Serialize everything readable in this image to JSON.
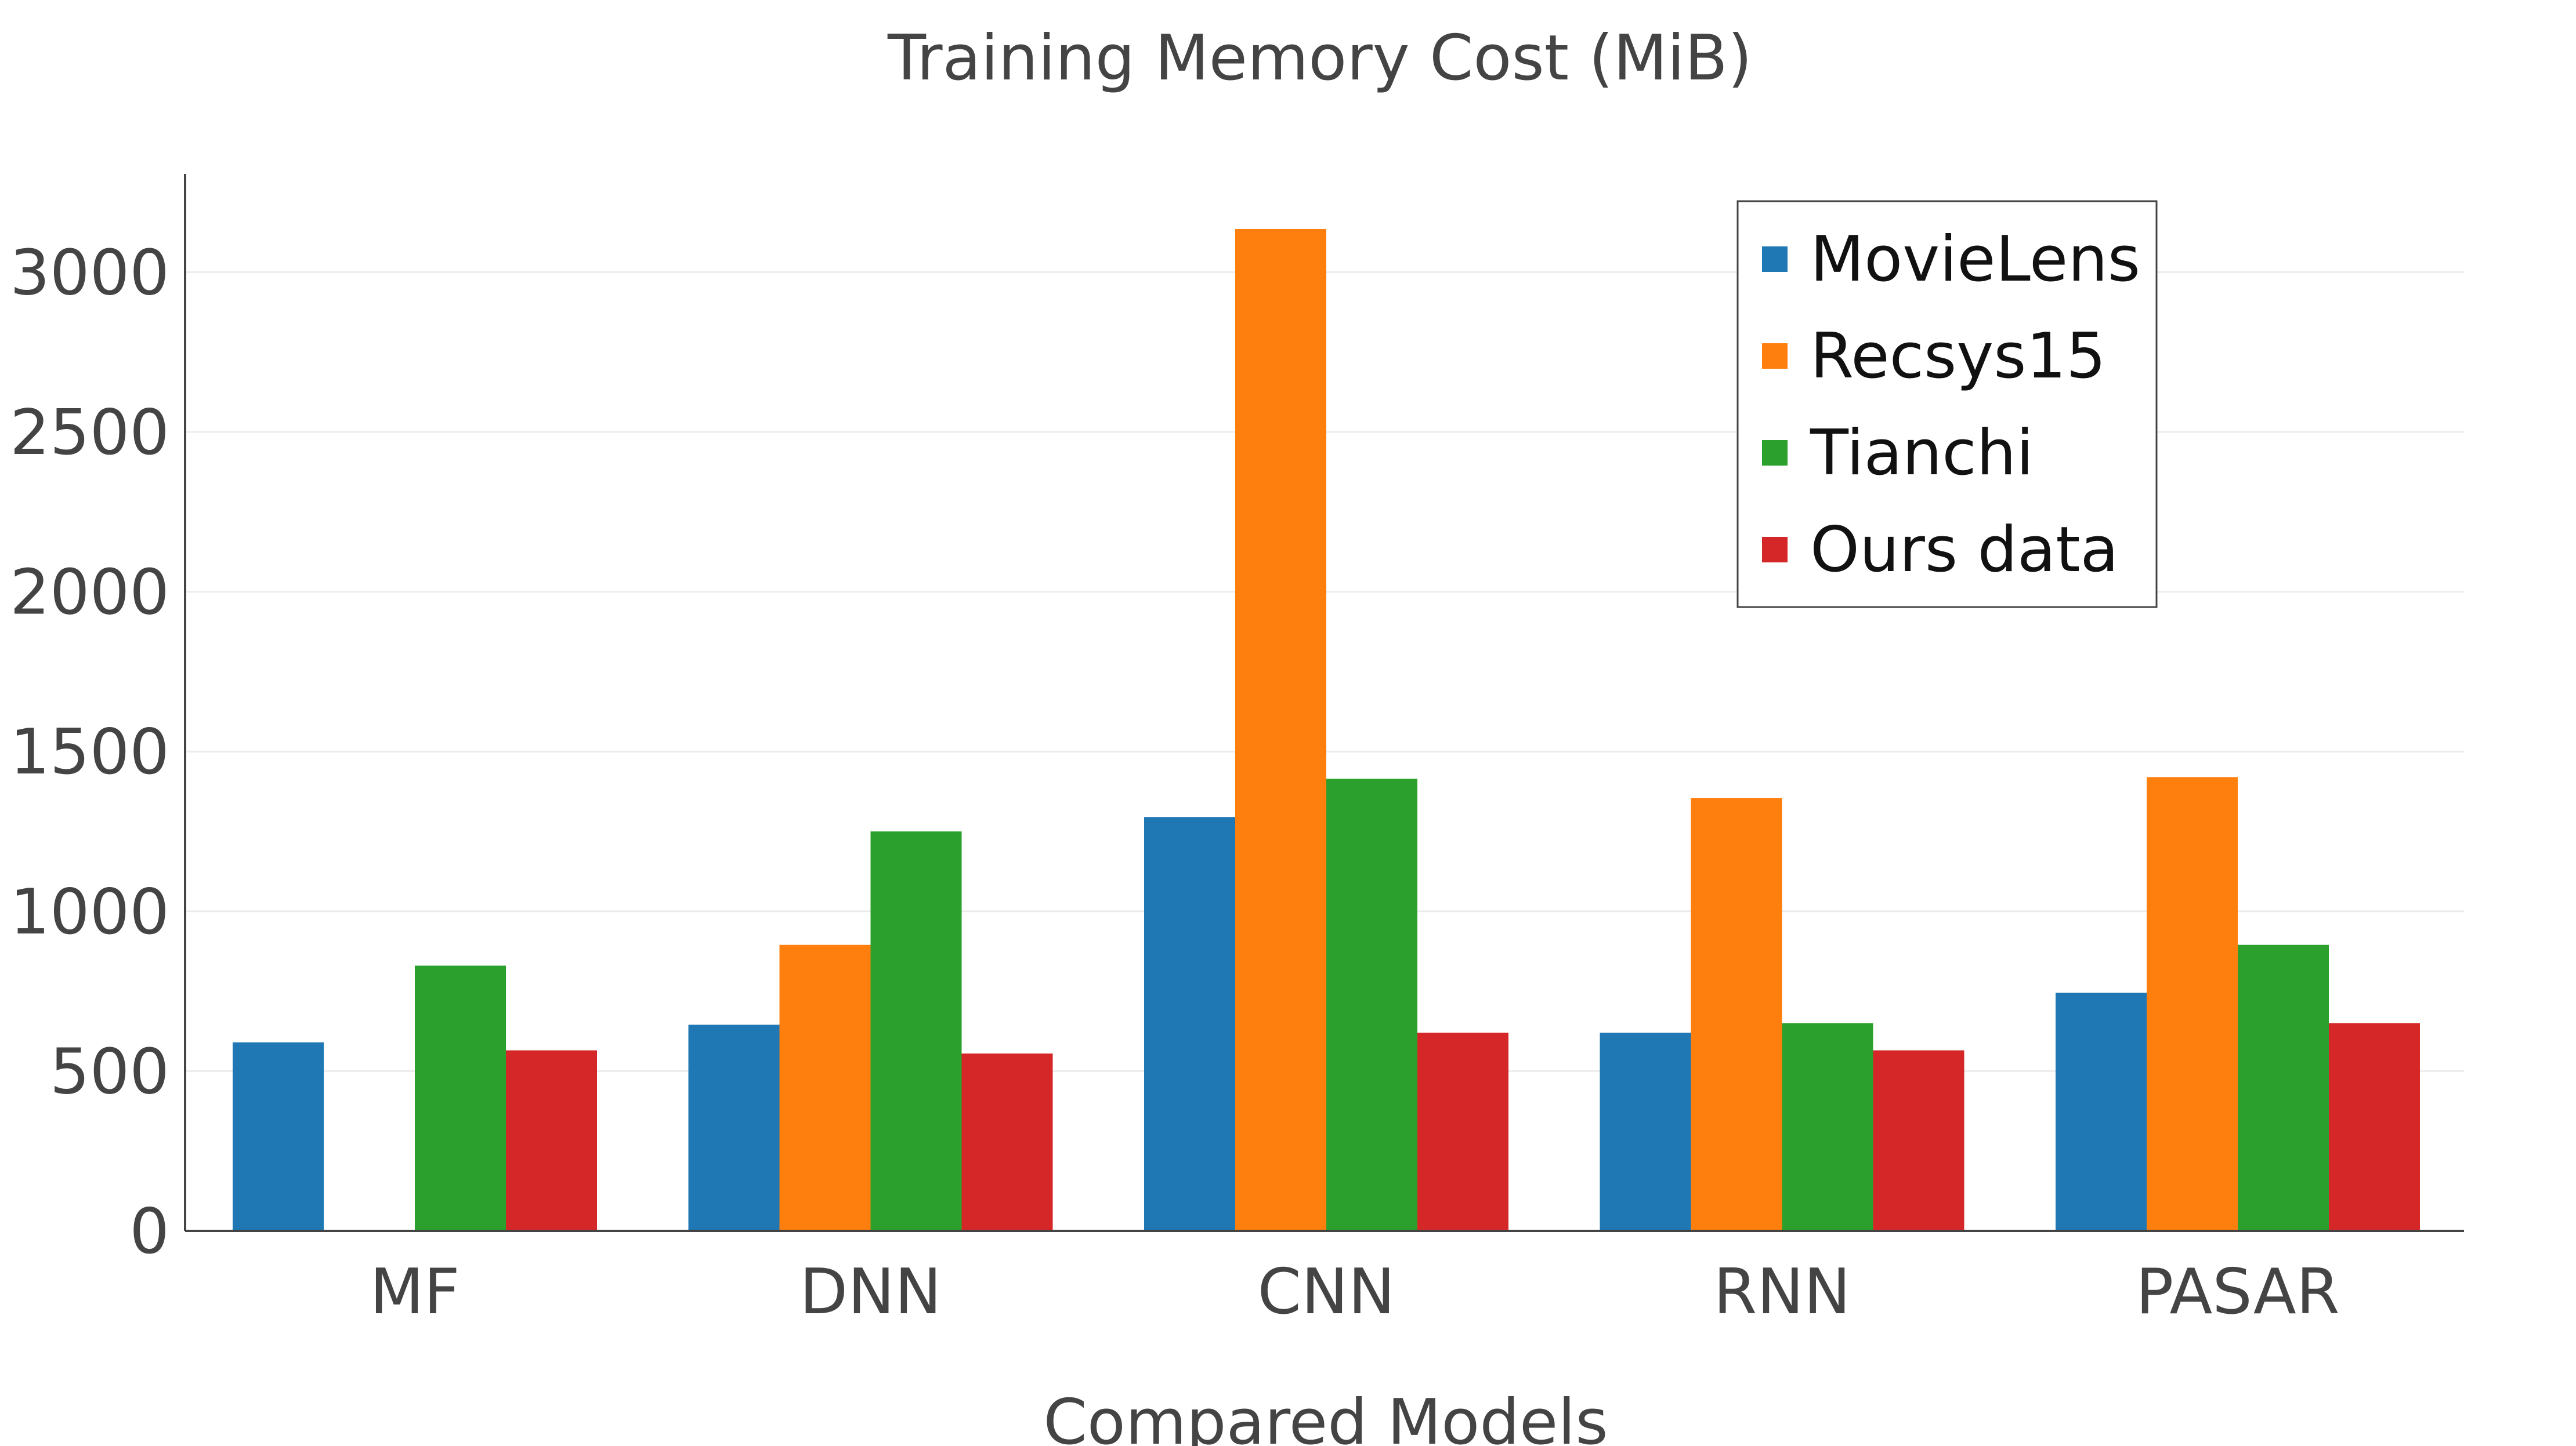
{
  "chart_data": {
    "type": "bar",
    "title": "Training Memory Cost (MiB)",
    "xlabel": "Compared Models",
    "ylabel": "",
    "categories": [
      "MF",
      "DNN",
      "CNN",
      "RNN",
      "PASAR"
    ],
    "series": [
      {
        "name": "MovieLens",
        "color": "#1f77b4",
        "values": [
          590,
          645,
          1295,
          620,
          745
        ]
      },
      {
        "name": "Recsys15",
        "color": "#ff7f0e",
        "values": [
          null,
          895,
          3135,
          1355,
          1420
        ]
      },
      {
        "name": "Tianchi",
        "color": "#2ca02c",
        "values": [
          830,
          1250,
          1415,
          650,
          895
        ]
      },
      {
        "name": "Ours data",
        "color": "#d62728",
        "values": [
          565,
          555,
          620,
          565,
          650
        ]
      }
    ],
    "ylim": [
      0,
      3300
    ],
    "yticks": [
      0,
      500,
      1000,
      1500,
      2000,
      2500,
      3000
    ],
    "grid": true,
    "legend_position": "top-right"
  }
}
